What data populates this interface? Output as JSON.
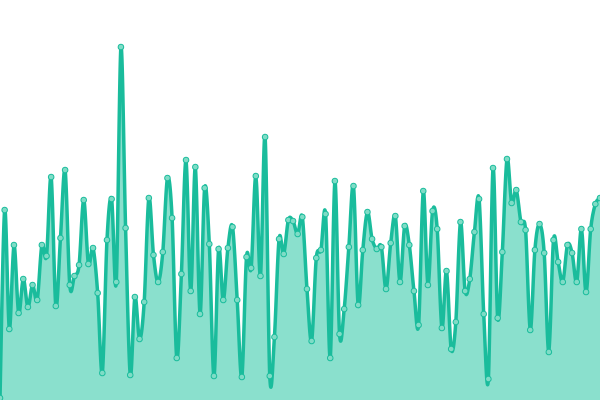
{
  "chart_data": {
    "type": "area",
    "title": "",
    "xlabel": "",
    "ylabel": "",
    "ylim": [
      0,
      400
    ],
    "grid": false,
    "legend": "none",
    "colors": {
      "line": "#1abc9c",
      "fill": "#8ae0cd",
      "point_fill": "#7fdcc6",
      "point_stroke": "#1abc9c"
    },
    "values": [
      2,
      190,
      71,
      155,
      87,
      121,
      93,
      115,
      100,
      155,
      144,
      223,
      94,
      162,
      230,
      115,
      124,
      135,
      200,
      136,
      152,
      107,
      27,
      160,
      201,
      118,
      353,
      172,
      25,
      103,
      61,
      98,
      202,
      145,
      118,
      148,
      222,
      182,
      42,
      126,
      240,
      109,
      233,
      86,
      212,
      156,
      24,
      151,
      100,
      152,
      173,
      100,
      23,
      143,
      132,
      224,
      124,
      263,
      24,
      63,
      161,
      146,
      180,
      179,
      166,
      183,
      111,
      59,
      142,
      150,
      186,
      42,
      219,
      66,
      91,
      153,
      214,
      95,
      150,
      188,
      161,
      151,
      153,
      111,
      157,
      184,
      118,
      174,
      155,
      109,
      75,
      209,
      115,
      189,
      171,
      72,
      129,
      51,
      78,
      178,
      109,
      121,
      168,
      201,
      86,
      21,
      232,
      82,
      148,
      241,
      197,
      210,
      178,
      170,
      70,
      150,
      176,
      147,
      48,
      160,
      138,
      118,
      155,
      147,
      118,
      171,
      108,
      171,
      196,
      202
    ]
  }
}
